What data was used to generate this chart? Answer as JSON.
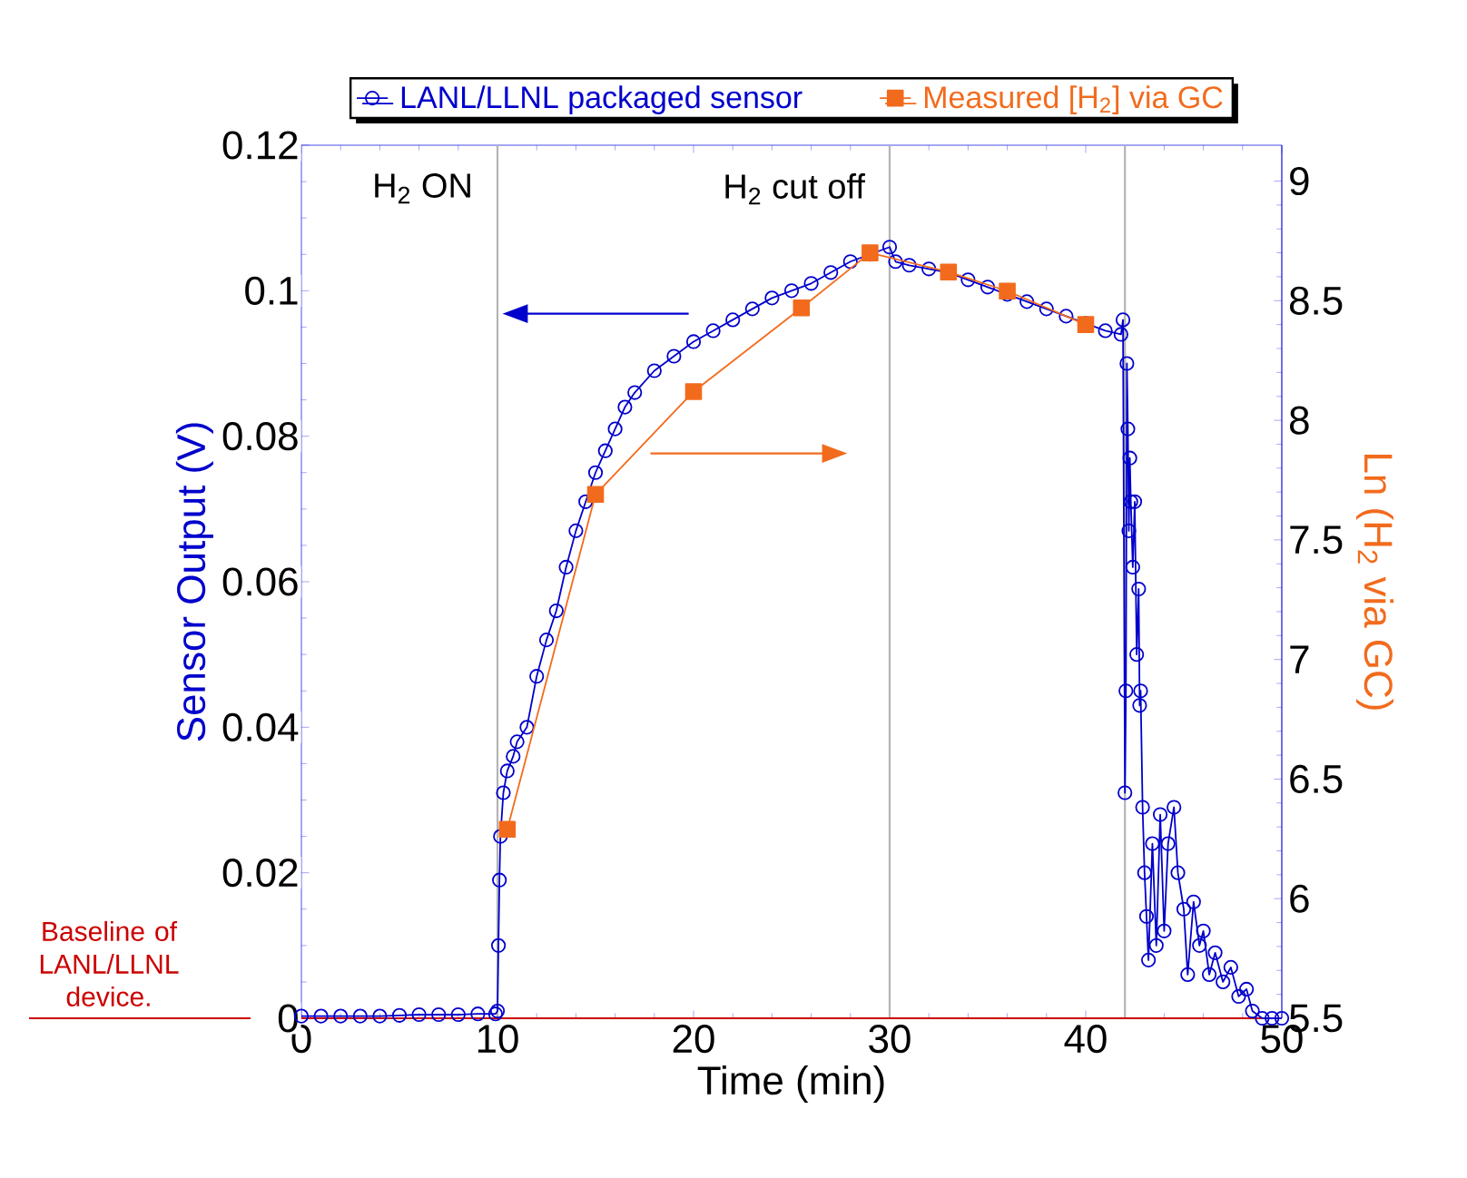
{
  "chart_data": {
    "type": "line",
    "xlabel": "Time (min)",
    "ylabel": "Sensor Output (V)",
    "y2label": "Ln (H$_{2}$ via GC)",
    "xlim": [
      0,
      50
    ],
    "xticks": [
      0,
      10,
      20,
      30,
      40,
      50
    ],
    "ylim": [
      0,
      0.12
    ],
    "yticks": [
      0,
      0.02,
      0.04,
      0.06,
      0.08,
      0.1,
      0.12
    ],
    "y2lim": [
      5.5,
      9.15
    ],
    "y2ticks": [
      5.5,
      6,
      6.5,
      7,
      7.5,
      8,
      8.5,
      9
    ],
    "legend": "top",
    "grid": false,
    "series": [
      {
        "name": "LANL/LLNL packaged sensor",
        "color": "#0000cc",
        "marker": "circle",
        "x": [
          0,
          1,
          2,
          3,
          4,
          5,
          6,
          7,
          8,
          9,
          9.9,
          10.0,
          10.05,
          10.1,
          10.15,
          10.3,
          10.5,
          10.8,
          11,
          11.5,
          12,
          12.5,
          13,
          13.5,
          14,
          14.5,
          15,
          15.5,
          16,
          16.5,
          17,
          18,
          19,
          20,
          21,
          22,
          23,
          24,
          25,
          26,
          27,
          28,
          29,
          30,
          30.3,
          31,
          32,
          33,
          34,
          35,
          36,
          37,
          38,
          39,
          40,
          41,
          41.8,
          41.9,
          42.0,
          42.05,
          42.1,
          42.15,
          42.2,
          42.25,
          42.3,
          42.4,
          42.5,
          42.6,
          42.7,
          42.75,
          42.8,
          42.9,
          43.0,
          43.1,
          43.2,
          43.4,
          43.6,
          43.8,
          44.0,
          44.2,
          44.5,
          44.7,
          45.0,
          45.2,
          45.5,
          45.8,
          46.0,
          46.3,
          46.6,
          47.0,
          47.4,
          47.8,
          48.2,
          48.5,
          49.0,
          49.5,
          50
        ],
        "values": [
          0.0003,
          0.0003,
          0.0003,
          0.0003,
          0.0003,
          0.0004,
          0.0005,
          0.0005,
          0.0005,
          0.0006,
          0.0006,
          0.001,
          0.01,
          0.019,
          0.025,
          0.031,
          0.034,
          0.036,
          0.038,
          0.04,
          0.047,
          0.052,
          0.056,
          0.062,
          0.067,
          0.071,
          0.075,
          0.078,
          0.081,
          0.084,
          0.086,
          0.089,
          0.091,
          0.093,
          0.0945,
          0.096,
          0.0975,
          0.099,
          0.1,
          0.101,
          0.1025,
          0.104,
          0.105,
          0.106,
          0.104,
          0.1035,
          0.103,
          0.1025,
          0.1015,
          0.1005,
          0.0995,
          0.0985,
          0.0975,
          0.0965,
          0.0955,
          0.0945,
          0.094,
          0.096,
          0.031,
          0.045,
          0.09,
          0.081,
          0.067,
          0.077,
          0.071,
          0.062,
          0.071,
          0.05,
          0.059,
          0.043,
          0.045,
          0.029,
          0.02,
          0.014,
          0.008,
          0.024,
          0.01,
          0.028,
          0.012,
          0.024,
          0.029,
          0.02,
          0.015,
          0.006,
          0.016,
          0.01,
          0.012,
          0.006,
          0.009,
          0.005,
          0.007,
          0.003,
          0.004,
          0.001,
          0.0,
          0.0,
          0.0
        ]
      },
      {
        "name": "Measured [H$_{2}$] via GC",
        "color": "#f26b1d",
        "marker": "square",
        "axis": "y2",
        "x": [
          10.5,
          15,
          20,
          25.5,
          29,
          33,
          36,
          40
        ],
        "values": [
          6.29,
          7.69,
          8.12,
          8.47,
          8.7,
          8.62,
          8.54,
          8.4
        ]
      }
    ],
    "ref_lines": [
      {
        "axis": "x",
        "value": 10,
        "label": "H$_{2}$ ON",
        "color": "#b4b4b4"
      },
      {
        "axis": "x",
        "value": 30,
        "label": "H$_{2}$ cut off",
        "color": "#b4b4b4"
      },
      {
        "axis": "x",
        "value": 42,
        "color": "#b4b4b4"
      },
      {
        "axis": "y",
        "value": 0,
        "label": "Baseline of LANL/LLNL device.",
        "color": "#cc0000"
      }
    ]
  }
}
